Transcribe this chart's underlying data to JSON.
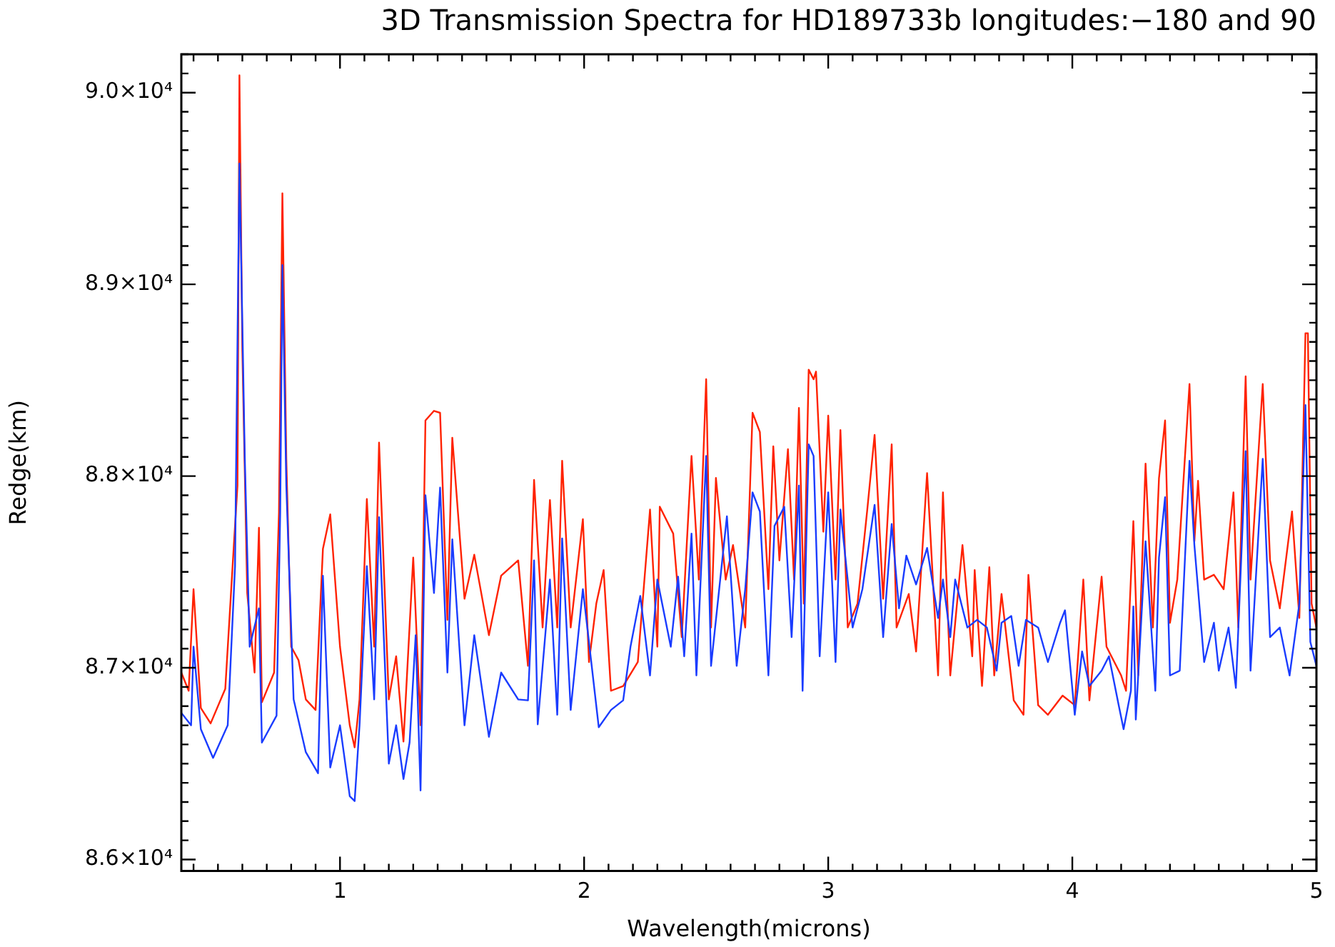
{
  "chart_data": {
    "type": "line",
    "title": "3D Transmission Spectra for HD189733b longitudes:−180 and 90",
    "xlabel": "Wavelength(microns)",
    "ylabel": "Redge(km)",
    "xlim": [
      0.35,
      5.0
    ],
    "xticks": [
      {
        "value": 0.4,
        "label": null
      },
      {
        "value": 0.5,
        "label": null
      },
      {
        "value": 0.6,
        "label": null
      },
      {
        "value": 0.7,
        "label": null
      },
      {
        "value": 0.8,
        "label": null
      },
      {
        "value": 0.9,
        "label": null
      },
      1,
      {
        "value": 1.1,
        "label": null
      },
      {
        "value": 1.2,
        "label": null
      },
      {
        "value": 1.3,
        "label": null
      },
      {
        "value": 1.4,
        "label": null
      },
      {
        "value": 1.5,
        "label": null
      },
      {
        "value": 1.6,
        "label": null
      },
      {
        "value": 1.7,
        "label": null
      },
      {
        "value": 1.8,
        "label": null
      },
      {
        "value": 1.9,
        "label": null
      },
      2,
      {
        "value": 2.1,
        "label": null
      },
      {
        "value": 2.2,
        "label": null
      },
      {
        "value": 2.3,
        "label": null
      },
      {
        "value": 2.4,
        "label": null
      },
      {
        "value": 2.5,
        "label": null
      },
      {
        "value": 2.6,
        "label": null
      },
      {
        "value": 2.7,
        "label": null
      },
      {
        "value": 2.8,
        "label": null
      },
      {
        "value": 2.9,
        "label": null
      },
      3,
      {
        "value": 3.1,
        "label": null
      },
      {
        "value": 3.2,
        "label": null
      },
      {
        "value": 3.3,
        "label": null
      },
      {
        "value": 3.4,
        "label": null
      },
      {
        "value": 3.5,
        "label": null
      },
      {
        "value": 3.6,
        "label": null
      },
      {
        "value": 3.7,
        "label": null
      },
      {
        "value": 3.8,
        "label": null
      },
      {
        "value": 3.9,
        "label": null
      },
      4,
      {
        "value": 4.1,
        "label": null
      },
      {
        "value": 4.2,
        "label": null
      },
      {
        "value": 4.3,
        "label": null
      },
      {
        "value": 4.4,
        "label": null
      },
      {
        "value": 4.5,
        "label": null
      },
      {
        "value": 4.6,
        "label": null
      },
      {
        "value": 4.7,
        "label": null
      },
      {
        "value": 4.8,
        "label": null
      },
      {
        "value": 4.9,
        "label": null
      },
      5
    ],
    "ylim": [
      85940,
      90200
    ],
    "yticks": [
      {
        "value": 86000,
        "label": "8.6×10⁴"
      },
      {
        "value": 86100,
        "label": null
      },
      {
        "value": 86200,
        "label": null
      },
      {
        "value": 86300,
        "label": null
      },
      {
        "value": 86400,
        "label": null
      },
      {
        "value": 86500,
        "label": null
      },
      {
        "value": 86600,
        "label": null
      },
      {
        "value": 86700,
        "label": null
      },
      {
        "value": 86800,
        "label": null
      },
      {
        "value": 86900,
        "label": null
      },
      {
        "value": 87000,
        "label": "8.7×10⁴"
      },
      {
        "value": 87100,
        "label": null
      },
      {
        "value": 87200,
        "label": null
      },
      {
        "value": 87300,
        "label": null
      },
      {
        "value": 87400,
        "label": null
      },
      {
        "value": 87500,
        "label": null
      },
      {
        "value": 87600,
        "label": null
      },
      {
        "value": 87700,
        "label": null
      },
      {
        "value": 87800,
        "label": null
      },
      {
        "value": 87900,
        "label": null
      },
      {
        "value": 88000,
        "label": "8.8×10⁴"
      },
      {
        "value": 88100,
        "label": null
      },
      {
        "value": 88200,
        "label": null
      },
      {
        "value": 88300,
        "label": null
      },
      {
        "value": 88400,
        "label": null
      },
      {
        "value": 88500,
        "label": null
      },
      {
        "value": 88600,
        "label": null
      },
      {
        "value": 88700,
        "label": null
      },
      {
        "value": 88800,
        "label": null
      },
      {
        "value": 88900,
        "label": null
      },
      {
        "value": 89000,
        "label": "8.9×10⁴"
      },
      {
        "value": 89100,
        "label": null
      },
      {
        "value": 89200,
        "label": null
      },
      {
        "value": 89300,
        "label": null
      },
      {
        "value": 89400,
        "label": null
      },
      {
        "value": 89500,
        "label": null
      },
      {
        "value": 89600,
        "label": null
      },
      {
        "value": 89700,
        "label": null
      },
      {
        "value": 89800,
        "label": null
      },
      {
        "value": 89900,
        "label": null
      },
      {
        "value": 90000,
        "label": "9.0×10⁴"
      },
      {
        "value": 90100,
        "label": null
      },
      {
        "value": 90200,
        "label": null
      }
    ],
    "series": [
      {
        "color": "#ff2200",
        "x": [
          0.35,
          0.38,
          0.4,
          0.43,
          0.47,
          0.53,
          0.56,
          0.58,
          0.588,
          0.6,
          0.62,
          0.65,
          0.668,
          0.68,
          0.73,
          0.75,
          0.764,
          0.78,
          0.8,
          0.83,
          0.86,
          0.9,
          0.93,
          0.96,
          1.0,
          1.04,
          1.06,
          1.08,
          1.11,
          1.14,
          1.16,
          1.2,
          1.23,
          1.26,
          1.3,
          1.33,
          1.35,
          1.385,
          1.41,
          1.44,
          1.46,
          1.51,
          1.55,
          1.61,
          1.66,
          1.73,
          1.77,
          1.795,
          1.83,
          1.86,
          1.89,
          1.91,
          1.945,
          1.995,
          2.02,
          2.05,
          2.08,
          2.11,
          2.16,
          2.22,
          2.27,
          2.3,
          2.31,
          2.365,
          2.4,
          2.44,
          2.47,
          2.5,
          2.52,
          2.54,
          2.58,
          2.61,
          2.66,
          2.69,
          2.72,
          2.755,
          2.775,
          2.8,
          2.835,
          2.86,
          2.88,
          2.9,
          2.92,
          2.94,
          2.95,
          2.98,
          3.0,
          3.03,
          3.05,
          3.08,
          3.12,
          3.16,
          3.19,
          3.225,
          3.26,
          3.28,
          3.33,
          3.36,
          3.405,
          3.45,
          3.47,
          3.5,
          3.55,
          3.59,
          3.6,
          3.63,
          3.66,
          3.68,
          3.71,
          3.76,
          3.8,
          3.82,
          3.86,
          3.9,
          3.96,
          4.01,
          4.045,
          4.07,
          4.12,
          4.14,
          4.2,
          4.22,
          4.25,
          4.27,
          4.3,
          4.33,
          4.355,
          4.38,
          4.4,
          4.43,
          4.48,
          4.5,
          4.515,
          4.54,
          4.58,
          4.62,
          4.66,
          4.68,
          4.71,
          4.73,
          4.78,
          4.81,
          4.85,
          4.9,
          4.93,
          4.955,
          4.965,
          4.98,
          5.0
        ],
        "values": [
          86975,
          86880,
          87410,
          86790,
          86710,
          86890,
          87530,
          87950,
          90090,
          88650,
          87390,
          86975,
          87730,
          86820,
          86975,
          87810,
          89475,
          88090,
          87110,
          87040,
          86835,
          86780,
          87620,
          87800,
          87110,
          86700,
          86585,
          86835,
          87880,
          87110,
          88175,
          86835,
          87060,
          86615,
          87575,
          86700,
          88290,
          88340,
          88330,
          87250,
          88200,
          87360,
          87590,
          87170,
          87480,
          87560,
          87010,
          87980,
          87210,
          87875,
          87210,
          88080,
          87210,
          87775,
          87030,
          87335,
          87510,
          86880,
          86905,
          87030,
          87825,
          87110,
          87840,
          87700,
          87160,
          88105,
          87460,
          88505,
          87210,
          87990,
          87460,
          87640,
          87210,
          88330,
          88230,
          87410,
          88155,
          87560,
          88140,
          87460,
          88355,
          87335,
          88555,
          88505,
          88545,
          87710,
          88315,
          87460,
          88240,
          87210,
          87335,
          87825,
          88215,
          87360,
          88165,
          87210,
          87385,
          87085,
          88015,
          86960,
          87915,
          86960,
          87640,
          87060,
          87510,
          86905,
          87525,
          86960,
          87385,
          86830,
          86755,
          87485,
          86805,
          86755,
          86855,
          86805,
          87460,
          86830,
          87475,
          87110,
          86960,
          86880,
          87765,
          86960,
          88065,
          87210,
          87990,
          88290,
          87235,
          87460,
          88480,
          87660,
          87975,
          87460,
          87485,
          87410,
          87915,
          87210,
          88520,
          87460,
          88480,
          87560,
          87310,
          87815,
          87260,
          88745,
          88745,
          87335,
          87210
        ]
      },
      {
        "color": "#1a3cff",
        "x": [
          0.35,
          0.39,
          0.4,
          0.43,
          0.48,
          0.54,
          0.57,
          0.588,
          0.61,
          0.63,
          0.668,
          0.68,
          0.74,
          0.755,
          0.764,
          0.78,
          0.81,
          0.86,
          0.91,
          0.93,
          0.96,
          1.0,
          1.04,
          1.06,
          1.08,
          1.11,
          1.14,
          1.16,
          1.2,
          1.23,
          1.26,
          1.285,
          1.31,
          1.33,
          1.35,
          1.385,
          1.41,
          1.44,
          1.46,
          1.51,
          1.55,
          1.61,
          1.66,
          1.73,
          1.77,
          1.795,
          1.81,
          1.86,
          1.89,
          1.91,
          1.945,
          1.995,
          2.06,
          2.11,
          2.16,
          2.19,
          2.23,
          2.27,
          2.3,
          2.355,
          2.385,
          2.41,
          2.44,
          2.46,
          2.5,
          2.52,
          2.585,
          2.625,
          2.66,
          2.69,
          2.72,
          2.755,
          2.78,
          2.82,
          2.85,
          2.88,
          2.895,
          2.92,
          2.94,
          2.965,
          3.0,
          3.03,
          3.05,
          3.1,
          3.14,
          3.19,
          3.225,
          3.26,
          3.29,
          3.32,
          3.36,
          3.405,
          3.45,
          3.47,
          3.5,
          3.52,
          3.57,
          3.61,
          3.65,
          3.69,
          3.71,
          3.75,
          3.78,
          3.81,
          3.86,
          3.9,
          3.95,
          3.97,
          4.01,
          4.04,
          4.07,
          4.12,
          4.15,
          4.19,
          4.21,
          4.24,
          4.25,
          4.26,
          4.3,
          4.34,
          4.355,
          4.38,
          4.4,
          4.44,
          4.48,
          4.5,
          4.54,
          4.58,
          4.6,
          4.64,
          4.67,
          4.71,
          4.73,
          4.78,
          4.81,
          4.85,
          4.89,
          4.93,
          4.955,
          4.975,
          5.0
        ],
        "values": [
          86765,
          86700,
          87110,
          86680,
          86530,
          86700,
          87530,
          89630,
          88090,
          87110,
          87310,
          86610,
          86750,
          87810,
          89100,
          87950,
          86835,
          86560,
          86450,
          87480,
          86480,
          86700,
          86330,
          86305,
          86700,
          87530,
          86835,
          87785,
          86500,
          86700,
          86420,
          86610,
          87170,
          86360,
          87900,
          87390,
          87940,
          86975,
          87670,
          86700,
          87170,
          86640,
          86975,
          86835,
          86830,
          87560,
          86705,
          87460,
          86755,
          87675,
          86780,
          87410,
          86690,
          86780,
          86830,
          87110,
          87375,
          86960,
          87460,
          87110,
          87475,
          87060,
          87700,
          86960,
          88105,
          87010,
          87790,
          87010,
          87410,
          87915,
          87815,
          86960,
          87740,
          87840,
          87160,
          87950,
          86880,
          88165,
          88105,
          87060,
          87915,
          87030,
          87825,
          87210,
          87410,
          87850,
          87160,
          87750,
          87310,
          87585,
          87435,
          87625,
          87260,
          87460,
          87160,
          87460,
          87210,
          87250,
          87210,
          86985,
          87235,
          87270,
          87010,
          87250,
          87210,
          87030,
          87235,
          87300,
          86755,
          87085,
          86905,
          86985,
          87060,
          86805,
          86680,
          86880,
          87320,
          86730,
          87660,
          86880,
          87575,
          87890,
          86960,
          86985,
          88080,
          87640,
          87030,
          87235,
          86985,
          87210,
          86895,
          88130,
          86985,
          88090,
          87160,
          87210,
          86960,
          87335,
          88370,
          87135,
          87010
        ]
      }
    ]
  }
}
